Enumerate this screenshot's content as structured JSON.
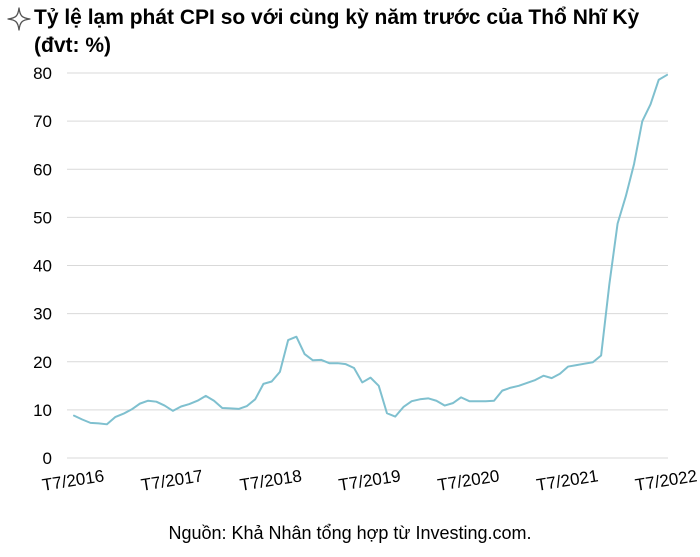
{
  "title": {
    "line1": "Tỷ lệ lạm phát CPI so với cùng kỳ năm trước của Thổ Nhĩ Kỳ",
    "line2": "(đvt: %)"
  },
  "source": "Nguồn: Khả Nhân tổng hợp từ Investing.com.",
  "icon": "sparkle-star-icon",
  "colors": {
    "line": "#7fc0cf",
    "grid": "#d9d9d9",
    "text": "#000000"
  },
  "chart_data": {
    "type": "line",
    "title": "Tỷ lệ lạm phát CPI so với cùng kỳ năm trước của Thổ Nhĩ Kỳ (đvt: %)",
    "xlabel": "",
    "ylabel": "",
    "ylim": [
      0,
      80
    ],
    "yticks": [
      0,
      10,
      20,
      30,
      40,
      50,
      60,
      70,
      80
    ],
    "grid": true,
    "legend": "none",
    "xtick_labels": [
      "T7/2016",
      "T7/2017",
      "T7/2018",
      "T7/2019",
      "T7/2020",
      "T7/2021",
      "T7/2022"
    ],
    "x": [
      "2016-07",
      "2016-08",
      "2016-09",
      "2016-10",
      "2016-11",
      "2016-12",
      "2017-01",
      "2017-02",
      "2017-03",
      "2017-04",
      "2017-05",
      "2017-06",
      "2017-07",
      "2017-08",
      "2017-09",
      "2017-10",
      "2017-11",
      "2017-12",
      "2018-01",
      "2018-02",
      "2018-03",
      "2018-04",
      "2018-05",
      "2018-06",
      "2018-07",
      "2018-08",
      "2018-09",
      "2018-10",
      "2018-11",
      "2018-12",
      "2019-01",
      "2019-02",
      "2019-03",
      "2019-04",
      "2019-05",
      "2019-06",
      "2019-07",
      "2019-08",
      "2019-09",
      "2019-10",
      "2019-11",
      "2019-12",
      "2020-01",
      "2020-02",
      "2020-03",
      "2020-04",
      "2020-05",
      "2020-06",
      "2020-07",
      "2020-08",
      "2020-09",
      "2020-10",
      "2020-11",
      "2020-12",
      "2021-01",
      "2021-02",
      "2021-03",
      "2021-04",
      "2021-05",
      "2021-06",
      "2021-07",
      "2021-08",
      "2021-09",
      "2021-10",
      "2021-11",
      "2021-12",
      "2022-01",
      "2022-02",
      "2022-03",
      "2022-04",
      "2022-05",
      "2022-06",
      "2022-07"
    ],
    "series": [
      {
        "values": [
          8.8,
          8.0,
          7.3,
          7.2,
          7.0,
          8.5,
          9.2,
          10.1,
          11.3,
          11.9,
          11.7,
          10.9,
          9.8,
          10.7,
          11.2,
          11.9,
          12.9,
          11.9,
          10.4,
          10.3,
          10.2,
          10.8,
          12.2,
          15.4,
          15.9,
          17.9,
          24.5,
          25.2,
          21.6,
          20.3,
          20.4,
          19.7,
          19.7,
          19.5,
          18.7,
          15.7,
          16.7,
          15.0,
          9.3,
          8.6,
          10.6,
          11.8,
          12.2,
          12.4,
          11.9,
          10.9,
          11.4,
          12.6,
          11.8,
          11.8,
          11.8,
          11.9,
          14.0,
          14.6,
          15.0,
          15.6,
          16.2,
          17.1,
          16.6,
          17.5,
          19.0,
          19.3,
          19.6,
          19.9,
          21.3,
          36.1,
          48.7,
          54.4,
          61.1,
          70.0,
          73.5,
          78.6,
          79.6
        ]
      }
    ]
  }
}
